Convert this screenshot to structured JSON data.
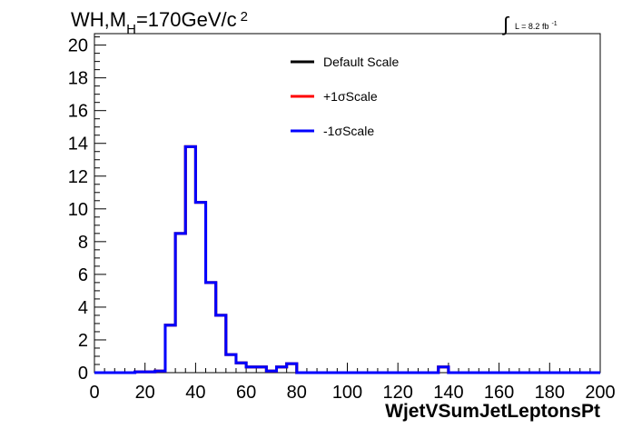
{
  "header": {
    "process": "WH,M",
    "subscript": "H",
    "mass": "=170GeV/c",
    "superscript": "2"
  },
  "lumi": {
    "integral_symbol": "∫",
    "text": "L = 8.2 fb",
    "exponent": "-1"
  },
  "chart_data": {
    "type": "line",
    "style": "step-histogram",
    "xlabel": "WjetVSumJetLeptonsPt",
    "ylabel": "",
    "xlim": [
      0,
      200
    ],
    "ylim": [
      0,
      20.7
    ],
    "x_ticks": [
      0,
      20,
      40,
      60,
      80,
      100,
      120,
      140,
      160,
      180,
      200
    ],
    "y_ticks": [
      0,
      2,
      4,
      6,
      8,
      10,
      12,
      14,
      16,
      18,
      20
    ],
    "grid": false,
    "legend_position": "top-center",
    "bin_edges": [
      0,
      4,
      8,
      12,
      16,
      20,
      24,
      28,
      32,
      36,
      40,
      44,
      48,
      52,
      56,
      60,
      64,
      68,
      72,
      76,
      80,
      84,
      88,
      92,
      96,
      100,
      104,
      108,
      112,
      116,
      120,
      124,
      128,
      132,
      136,
      140,
      144,
      148,
      152,
      156,
      160,
      164,
      168,
      172,
      176,
      180,
      184,
      188,
      192,
      196,
      200
    ],
    "series": [
      {
        "name": "Default Scale",
        "color": "#000000",
        "values": [
          0,
          0,
          0,
          0,
          0.05,
          0.05,
          0.1,
          2.9,
          8.5,
          13.8,
          10.4,
          5.5,
          3.5,
          1.1,
          0.6,
          0.35,
          0.35,
          0.1,
          0.35,
          0.55,
          0,
          0,
          0,
          0,
          0,
          0,
          0,
          0,
          0,
          0,
          0,
          0,
          0,
          0,
          0.35,
          0,
          0,
          0,
          0,
          0,
          0,
          0,
          0,
          0,
          0,
          0,
          0,
          0,
          0,
          0
        ]
      },
      {
        "name": "+1σScale",
        "color": "#ff0000",
        "values": [
          0,
          0,
          0,
          0,
          0.05,
          0.05,
          0.1,
          2.9,
          8.5,
          13.8,
          10.4,
          5.5,
          3.5,
          1.1,
          0.6,
          0.35,
          0.35,
          0.1,
          0.35,
          0.55,
          0,
          0,
          0,
          0,
          0,
          0,
          0,
          0,
          0,
          0,
          0,
          0,
          0,
          0,
          0.35,
          0,
          0,
          0,
          0,
          0,
          0,
          0,
          0,
          0,
          0,
          0,
          0,
          0,
          0,
          0
        ]
      },
      {
        "name": "-1σScale",
        "color": "#0000ff",
        "values": [
          0,
          0,
          0,
          0,
          0.05,
          0.05,
          0.1,
          2.9,
          8.5,
          13.8,
          10.4,
          5.5,
          3.5,
          1.1,
          0.6,
          0.35,
          0.35,
          0.1,
          0.35,
          0.55,
          0,
          0,
          0,
          0,
          0,
          0,
          0,
          0,
          0,
          0,
          0,
          0,
          0,
          0,
          0.35,
          0,
          0,
          0,
          0,
          0,
          0,
          0,
          0,
          0,
          0,
          0,
          0,
          0,
          0,
          0
        ]
      }
    ]
  }
}
